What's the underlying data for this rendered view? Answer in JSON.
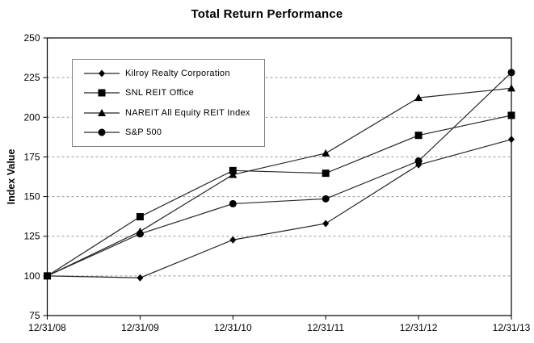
{
  "chart_data": {
    "type": "line",
    "title": "Total Return Performance",
    "xlabel": "",
    "ylabel": "Index Value",
    "x_labels": [
      "12/31/08",
      "12/31/09",
      "12/31/10",
      "12/31/11",
      "12/31/12",
      "12/31/13"
    ],
    "y_ticks": [
      75,
      100,
      125,
      150,
      175,
      200,
      225,
      250
    ],
    "ylim": [
      75,
      250
    ],
    "grid": "horizontal dashed gridlines at 100-225",
    "legend_position": "inside upper-left",
    "series": [
      {
        "name": "Kilroy Realty Corporation",
        "marker": "diamond",
        "values": [
          100,
          98.8,
          122.7,
          133.0,
          170.0,
          186.0
        ]
      },
      {
        "name": "SNL REIT Office",
        "marker": "square",
        "values": [
          100,
          137.3,
          166.4,
          164.7,
          188.6,
          201.2
        ]
      },
      {
        "name": "NAREIT All Equity REIT Index",
        "marker": "triangle",
        "values": [
          100,
          128.0,
          163.8,
          177.3,
          212.3,
          218.3
        ]
      },
      {
        "name": "S&P 500",
        "marker": "circle",
        "values": [
          100,
          126.5,
          145.5,
          148.6,
          172.4,
          228.2
        ]
      }
    ],
    "colors": {
      "line": "#262626",
      "marker": "#000000",
      "grid": "#999999",
      "axis": "#000000",
      "text": "#000000",
      "background": "#ffffff",
      "legend_border": "#808080"
    }
  }
}
